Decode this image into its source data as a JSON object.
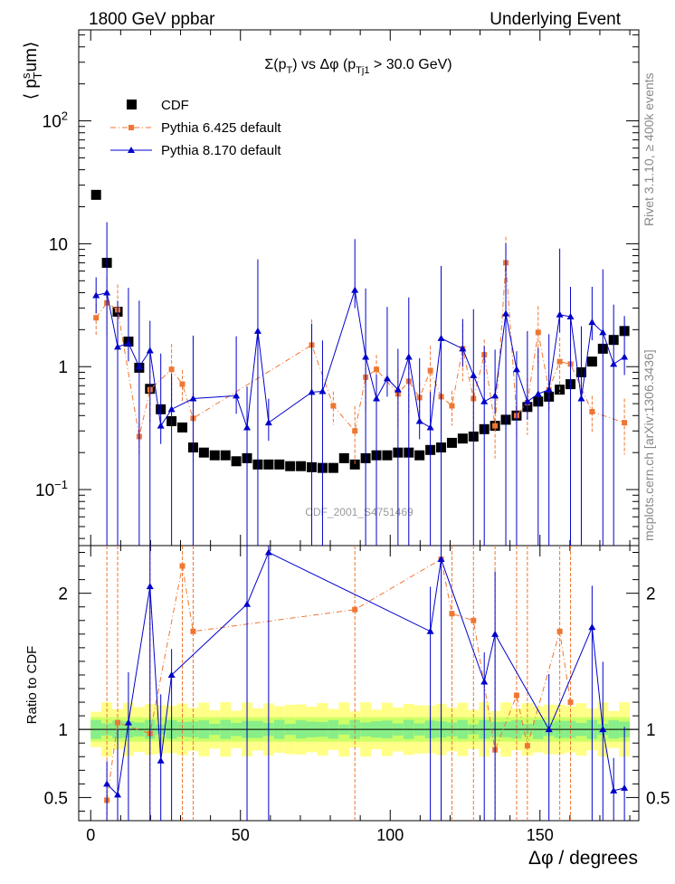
{
  "header": {
    "left": "1800 GeV ppbar",
    "right": "Underlying Event"
  },
  "plot_title": {
    "main": "Σ(p",
    "sub": "T",
    "mid": ") vs Δφ (p",
    "sub2": "Tj1",
    "end": " > 30.0 GeV)"
  },
  "y_label_top": {
    "pre": "⟨ p",
    "sup": "s",
    "sub": "T",
    "post": "um⟩"
  },
  "y_label_bottom": "Ratio to CDF",
  "x_label": "Δφ / degrees",
  "watermark": "CDF_2001_S4751469",
  "side_text": {
    "rivet": "Rivet 3.1.10, ≥ 400k events",
    "mcplots": "mcplots.cern.ch [arXiv:1306.3436]"
  },
  "legend": [
    {
      "name": "CDF",
      "color": "#000000"
    },
    {
      "name": "Pythia 6.425 default",
      "color": "#ee7733"
    },
    {
      "name": "Pythia 8.170 default",
      "color": "#0000cc"
    }
  ],
  "chart_data": [
    {
      "type": "scatter",
      "panel": "main",
      "title": "Σ(pT) vs Δφ (pTj1 > 30.0 GeV)",
      "xlabel": "Δφ / degrees",
      "ylabel": "⟨ pT sum ⟩",
      "xlim": [
        -4,
        183
      ],
      "ylim": [
        0.035,
        550
      ],
      "yscale": "log",
      "y_ticks": [
        {
          "value": 0.1,
          "base": "10",
          "exp": "−1"
        },
        {
          "value": 1,
          "label": "1"
        },
        {
          "value": 10,
          "label": "10"
        },
        {
          "value": 100,
          "base": "10",
          "exp": "2"
        }
      ],
      "x_ticks": [
        0,
        50,
        100,
        150
      ],
      "series": [
        {
          "name": "CDF",
          "x": [
            1.8,
            5.4,
            9.0,
            12.6,
            16.2,
            19.8,
            23.4,
            27.0,
            30.6,
            34.2,
            37.8,
            41.4,
            45.0,
            48.6,
            52.2,
            55.8,
            59.4,
            63.0,
            66.6,
            70.2,
            73.8,
            77.4,
            81.0,
            84.6,
            88.2,
            91.8,
            95.4,
            99.0,
            102.6,
            106.2,
            109.8,
            113.4,
            117.0,
            120.6,
            124.2,
            127.8,
            131.4,
            135.0,
            138.6,
            142.2,
            145.8,
            149.4,
            153.0,
            156.6,
            160.2,
            163.8,
            167.4,
            171.0,
            174.6,
            178.2
          ],
          "y": [
            25,
            7.0,
            2.8,
            1.6,
            0.98,
            0.66,
            0.45,
            0.36,
            0.32,
            0.22,
            0.2,
            0.19,
            0.19,
            0.17,
            0.18,
            0.16,
            0.16,
            0.16,
            0.155,
            0.155,
            0.152,
            0.15,
            0.15,
            0.18,
            0.16,
            0.18,
            0.19,
            0.19,
            0.2,
            0.2,
            0.19,
            0.21,
            0.22,
            0.24,
            0.26,
            0.27,
            0.31,
            0.33,
            0.37,
            0.4,
            0.47,
            0.52,
            0.57,
            0.65,
            0.72,
            0.9,
            1.1,
            1.4,
            1.65,
            1.95
          ]
        },
        {
          "name": "Pythia 6.425 default",
          "x": [
            1.8,
            5.4,
            9.0,
            16.2,
            19.8,
            27.0,
            30.6,
            34.2,
            73.8,
            81.0,
            88.2,
            91.8,
            95.4,
            102.6,
            106.2,
            109.8,
            113.4,
            117.0,
            120.6,
            124.2,
            127.8,
            131.4,
            135.0,
            138.6,
            142.2,
            145.8,
            149.4,
            153.0,
            156.6,
            160.2,
            167.4,
            178.2
          ],
          "y": [
            2.5,
            3.3,
            2.9,
            0.27,
            0.65,
            0.95,
            0.72,
            0.38,
            1.5,
            0.48,
            0.3,
            0.82,
            0.95,
            0.6,
            0.76,
            0.56,
            0.93,
            0.57,
            0.48,
            1.4,
            0.55,
            1.25,
            0.33,
            7.0,
            0.4,
            0.51,
            1.9,
            0.65,
            1.1,
            1.05,
            0.43,
            0.35
          ]
        },
        {
          "name": "Pythia 8.170 default",
          "x": [
            1.8,
            5.4,
            9.0,
            12.6,
            16.2,
            19.8,
            23.4,
            27.0,
            34.2,
            48.6,
            52.2,
            55.8,
            59.4,
            73.8,
            77.4,
            88.2,
            91.8,
            95.4,
            99.0,
            102.6,
            106.2,
            109.8,
            113.4,
            117.0,
            124.2,
            127.8,
            131.4,
            135.0,
            138.6,
            142.2,
            145.8,
            149.4,
            153.0,
            156.6,
            160.2,
            163.8,
            167.4,
            171.0,
            174.6,
            178.2
          ],
          "y": [
            3.8,
            4.0,
            1.45,
            1.55,
            1.0,
            1.35,
            0.33,
            0.45,
            0.55,
            0.58,
            0.32,
            1.95,
            0.35,
            0.62,
            0.63,
            4.2,
            1.2,
            0.55,
            0.8,
            0.65,
            1.2,
            0.36,
            0.32,
            1.7,
            1.4,
            0.85,
            0.52,
            0.58,
            2.7,
            0.95,
            0.52,
            0.6,
            0.65,
            2.65,
            2.55,
            0.55,
            2.3,
            1.9,
            1.05,
            1.2
          ]
        }
      ]
    },
    {
      "type": "scatter",
      "panel": "ratio",
      "ylabel": "Ratio to CDF",
      "xlim": [
        -4,
        183
      ],
      "ylim": [
        0.33,
        2.35
      ],
      "y_ticks": [
        0.5,
        1,
        2
      ],
      "reference": 1,
      "series": [
        {
          "name": "Pythia 6.425 default",
          "x": [
            5.4,
            9.0,
            19.8,
            30.6,
            34.2,
            88.2,
            117.0,
            120.6,
            127.8,
            135.0,
            142.2,
            145.8,
            156.6,
            160.2
          ],
          "y": [
            0.48,
            1.05,
            0.97,
            2.2,
            1.72,
            1.88,
            2.25,
            1.85,
            1.8,
            0.85,
            1.25,
            0.88,
            1.72,
            1.2
          ]
        },
        {
          "name": "Pythia 8.170 default",
          "x": [
            5.4,
            9.0,
            12.6,
            19.8,
            23.4,
            27.0,
            52.2,
            59.4,
            113.4,
            117.0,
            131.4,
            135.0,
            153.0,
            167.4,
            171.0,
            174.6,
            178.2
          ],
          "y": [
            0.6,
            0.52,
            1.05,
            2.05,
            0.77,
            1.4,
            1.92,
            2.3,
            1.72,
            2.25,
            1.35,
            1.7,
            1.0,
            1.75,
            1.0,
            0.55,
            0.57
          ]
        }
      ]
    }
  ]
}
